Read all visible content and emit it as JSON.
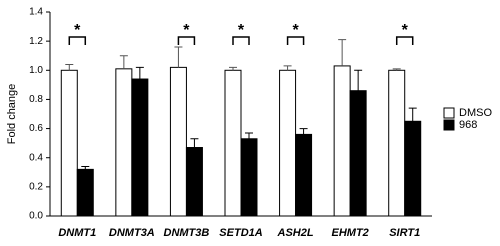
{
  "chart_data": {
    "type": "bar",
    "y_label": "Fold change",
    "categories": [
      "DNMT1",
      "DNMT3A",
      "DNMT3B",
      "SETD1A",
      "ASH2L",
      "EHMT2",
      "SIRT1"
    ],
    "series": [
      {
        "name": "DMSO",
        "color": "#ffffff",
        "values": [
          1.0,
          1.01,
          1.02,
          1.0,
          1.0,
          1.03,
          1.0
        ],
        "errors": [
          0.04,
          0.09,
          0.14,
          0.02,
          0.03,
          0.18,
          0.01
        ]
      },
      {
        "name": "968",
        "color": "#000000",
        "values": [
          0.32,
          0.94,
          0.47,
          0.53,
          0.56,
          0.86,
          0.65
        ],
        "errors": [
          0.02,
          0.08,
          0.06,
          0.04,
          0.04,
          0.14,
          0.09
        ]
      }
    ],
    "significance": [
      "*",
      null,
      "*",
      "*",
      "*",
      null,
      "*"
    ],
    "ylim": [
      0,
      1.4
    ],
    "yticks": [
      {
        "value": 0,
        "label": "0.0"
      },
      {
        "value": 0.2,
        "label": "0.2"
      },
      {
        "value": 0.4,
        "label": "0.4"
      },
      {
        "value": 0.6,
        "label": "0.6"
      },
      {
        "value": 0.8,
        "label": "0.8"
      },
      {
        "value": 1.0,
        "label": "1.0"
      },
      {
        "value": 1.2,
        "label": "1.2"
      },
      {
        "value": 1.4,
        "label": "1.4"
      }
    ],
    "grid": false,
    "legend_position": "right"
  }
}
